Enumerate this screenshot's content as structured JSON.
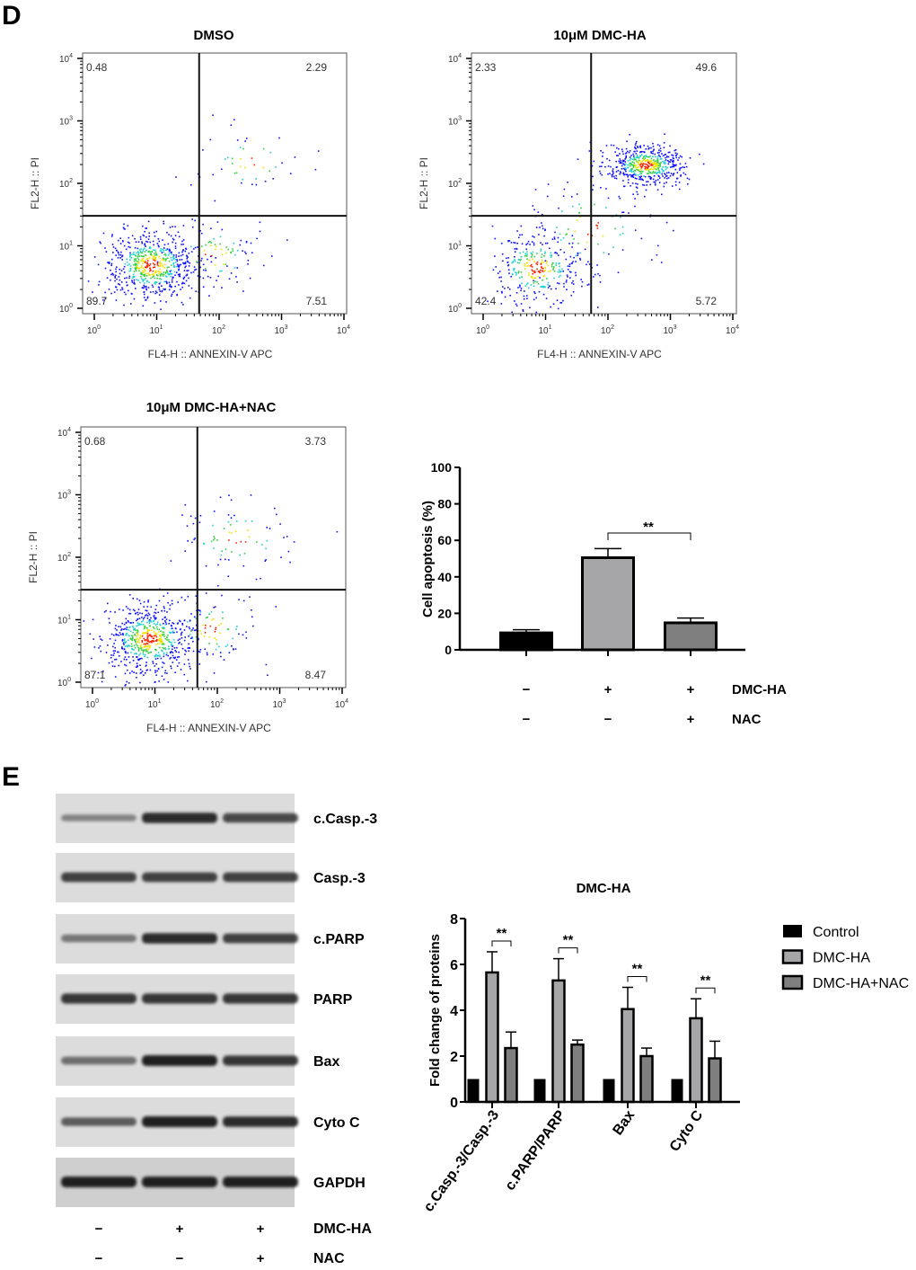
{
  "panel_labels": {
    "d": "D",
    "e": "E"
  },
  "chart_data": [
    {
      "type": "scatter",
      "id": "flow_dmso",
      "title": "DMSO",
      "xlabel": "FL4-H :: ANNEXIN-V APC",
      "ylabel": "FL2-H :: PI",
      "scale": "log10",
      "tick_base": "10",
      "tick_exponents": [
        "0",
        "1",
        "2",
        "3",
        "4"
      ],
      "xlim_decades": [
        0,
        4
      ],
      "ylim_decades": [
        0,
        4
      ],
      "gate_decades": {
        "x": 1.68,
        "y": 1.48
      },
      "quadrants": {
        "upper_left": "0.48",
        "upper_right": "2.29",
        "lower_left": "89.7",
        "lower_right": "7.51"
      },
      "populations": [
        {
          "cx": 0.9,
          "cy": 0.7,
          "sx": 0.38,
          "sy": 0.28,
          "n": 650
        },
        {
          "cx": 1.9,
          "cy": 0.85,
          "sx": 0.4,
          "sy": 0.3,
          "n": 90
        },
        {
          "cx": 2.5,
          "cy": 2.35,
          "sx": 0.45,
          "sy": 0.3,
          "n": 45
        }
      ]
    },
    {
      "type": "scatter",
      "id": "flow_dmc",
      "title": "10μM DMC-HA",
      "xlabel": "FL4-H :: ANNEXIN-V APC",
      "ylabel": "FL2-H :: PI",
      "scale": "log10",
      "tick_base": "10",
      "tick_exponents": [
        "0",
        "1",
        "2",
        "3",
        "4"
      ],
      "xlim_decades": [
        0,
        4
      ],
      "ylim_decades": [
        0,
        4
      ],
      "gate_decades": {
        "x": 1.73,
        "y": 1.48
      },
      "quadrants": {
        "upper_left": "2.33",
        "upper_right": "49.6",
        "lower_left": "42.4",
        "lower_right": "5.72"
      },
      "populations": [
        {
          "cx": 2.6,
          "cy": 2.3,
          "sx": 0.32,
          "sy": 0.16,
          "n": 520
        },
        {
          "cx": 0.85,
          "cy": 0.65,
          "sx": 0.38,
          "sy": 0.3,
          "n": 330
        },
        {
          "cx": 1.7,
          "cy": 1.3,
          "sx": 0.5,
          "sy": 0.45,
          "n": 110
        }
      ]
    },
    {
      "type": "scatter",
      "id": "flow_dmc_nac",
      "title": "10μM DMC-HA+NAC",
      "xlabel": "FL4-H :: ANNEXIN-V APC",
      "ylabel": "FL2-H :: PI",
      "scale": "log10",
      "tick_base": "10",
      "tick_exponents": [
        "0",
        "1",
        "2",
        "3",
        "4"
      ],
      "xlim_decades": [
        0,
        4
      ],
      "ylim_decades": [
        0,
        4
      ],
      "gate_decades": {
        "x": 1.68,
        "y": 1.48
      },
      "quadrants": {
        "upper_left": "0.68",
        "upper_right": "3.73",
        "lower_left": "87.1",
        "lower_right": "8.47"
      },
      "populations": [
        {
          "cx": 0.9,
          "cy": 0.7,
          "sx": 0.38,
          "sy": 0.28,
          "n": 650
        },
        {
          "cx": 1.9,
          "cy": 0.85,
          "sx": 0.4,
          "sy": 0.3,
          "n": 90
        },
        {
          "cx": 2.3,
          "cy": 2.3,
          "sx": 0.5,
          "sy": 0.3,
          "n": 80
        }
      ]
    },
    {
      "type": "bar",
      "id": "apoptosis",
      "ylabel": "Cell apoptosis (%)",
      "ylim": [
        0,
        100
      ],
      "yticks": [
        "0",
        "20",
        "40",
        "60",
        "80",
        "100"
      ],
      "values": [
        9.3,
        50.5,
        14.8
      ],
      "errors": [
        1.7,
        5.0,
        2.6
      ],
      "colors": [
        "#000000",
        "#a6a6a8",
        "#7f7f7f"
      ],
      "significance": {
        "between": [
          1,
          2
        ],
        "label": "**"
      },
      "conditions": [
        {
          "name": "DMC-HA",
          "signs": [
            "−",
            "+",
            "+"
          ]
        },
        {
          "name": "NAC",
          "signs": [
            "−",
            "−",
            "+"
          ]
        }
      ]
    },
    {
      "type": "bar",
      "id": "fold_change",
      "title": "DMC-HA",
      "ylabel": "Fold change of proteins",
      "ylim": [
        0,
        8
      ],
      "yticks": [
        "0",
        "2",
        "4",
        "6",
        "8"
      ],
      "categories": [
        "c.Casp.-3/Casp.-3",
        "c.PARP/PARP",
        "Bax",
        "Cyto C"
      ],
      "series": [
        {
          "name": "Control",
          "color": "#000000",
          "values": [
            1,
            1,
            1,
            1
          ],
          "errors": [
            0,
            0,
            0,
            0
          ]
        },
        {
          "name": "DMC-HA",
          "color": "#a6a6a8",
          "values": [
            5.65,
            5.3,
            4.05,
            3.65
          ],
          "errors": [
            0.9,
            0.95,
            0.95,
            0.85
          ]
        },
        {
          "name": "DMC-HA+NAC",
          "color": "#7f7f7f",
          "values": [
            2.35,
            2.5,
            2.0,
            1.9
          ],
          "errors": [
            0.7,
            0.2,
            0.35,
            0.75
          ]
        }
      ],
      "significance_label": "**",
      "legend": "right"
    }
  ],
  "western_blot": {
    "rows": [
      {
        "label": "c.Casp.-3",
        "intensity": [
          0.45,
          0.95,
          0.8
        ]
      },
      {
        "label": "Casp.-3",
        "intensity": [
          0.85,
          0.85,
          0.85
        ]
      },
      {
        "label": "c.PARP",
        "intensity": [
          0.55,
          0.95,
          0.85
        ]
      },
      {
        "label": "PARP",
        "intensity": [
          0.9,
          0.9,
          0.9
        ]
      },
      {
        "label": "Bax",
        "intensity": [
          0.6,
          1.0,
          0.9
        ]
      },
      {
        "label": "Cyto C",
        "intensity": [
          0.7,
          1.0,
          0.95
        ]
      },
      {
        "label": "GAPDH",
        "intensity": [
          1.0,
          1.0,
          1.0
        ]
      }
    ],
    "conditions": [
      {
        "name": "DMC-HA",
        "signs": [
          "−",
          "+",
          "+"
        ]
      },
      {
        "name": "NAC",
        "signs": [
          "−",
          "−",
          "+"
        ]
      }
    ]
  }
}
